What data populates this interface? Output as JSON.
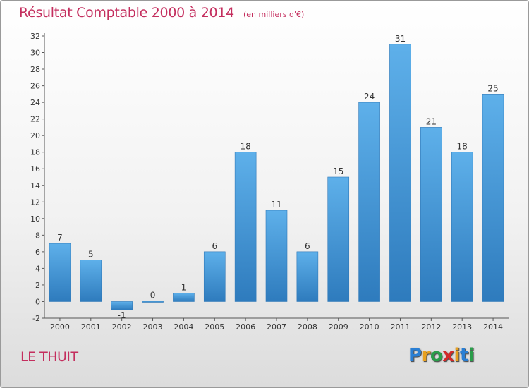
{
  "title": "Résultat Comptable 2000 à 2014",
  "subtitle": "(en milliers d'€)",
  "commune": "LE THUIT",
  "logo": {
    "letters": [
      "P",
      "r",
      "o",
      "x",
      "i",
      "t",
      "i"
    ],
    "colors": [
      "#2a7fd4",
      "#e8a020",
      "#2a9d4a",
      "#d22a2a",
      "#e8a020",
      "#2a7fd4",
      "#2a9d4a"
    ]
  },
  "chart_data": {
    "type": "bar",
    "categories": [
      "2000",
      "2001",
      "2002",
      "2003",
      "2004",
      "2005",
      "2006",
      "2007",
      "2008",
      "2009",
      "2010",
      "2011",
      "2012",
      "2013",
      "2014"
    ],
    "values": [
      7,
      5,
      -1,
      0,
      1,
      6,
      18,
      11,
      6,
      15,
      24,
      31,
      21,
      18,
      25
    ],
    "value_labels": [
      "7",
      "5",
      "-1",
      "0",
      "1",
      "6",
      "18",
      "11",
      "6",
      "15",
      "24",
      "31",
      "21",
      "18",
      "25"
    ],
    "ylim": [
      -2,
      32
    ],
    "yticks": [
      -2,
      0,
      2,
      4,
      6,
      8,
      10,
      12,
      14,
      16,
      18,
      20,
      22,
      24,
      26,
      28,
      30,
      32
    ],
    "bar_color": "#4a9de0",
    "grid": false,
    "legend": "none"
  }
}
